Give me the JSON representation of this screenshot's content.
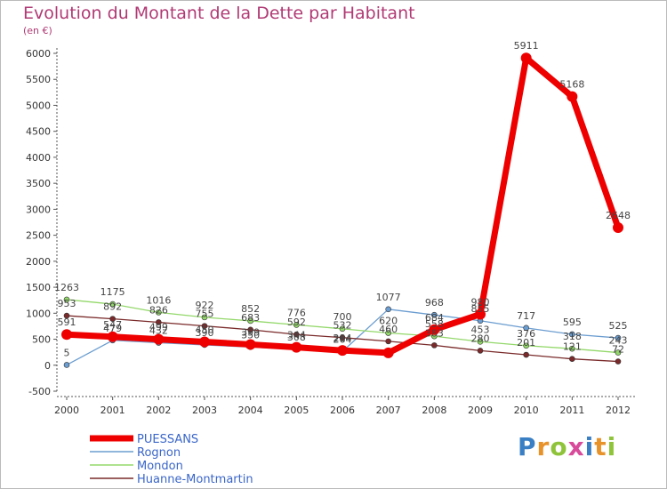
{
  "title": "Evolution du Montant de la Dette par Habitant",
  "subtitle": "(en €)",
  "logo": {
    "text": "Proxiti",
    "letters": [
      {
        "ch": "P",
        "color": "#3a7fc4"
      },
      {
        "ch": "r",
        "color": "#e8922a"
      },
      {
        "ch": "o",
        "color": "#8fc33a"
      },
      {
        "ch": "x",
        "color": "#d84a9a"
      },
      {
        "ch": "i",
        "color": "#3a7fc4"
      },
      {
        "ch": "t",
        "color": "#e8922a"
      },
      {
        "ch": "i",
        "color": "#8fc33a"
      }
    ]
  },
  "chart_data": {
    "type": "line",
    "title": "Evolution du Montant de la Dette par Habitant",
    "ylabel": "(en €)",
    "xlabel": "",
    "x": [
      2000,
      2001,
      2002,
      2003,
      2004,
      2005,
      2006,
      2007,
      2008,
      2009,
      2010,
      2011,
      2012
    ],
    "ylim": [
      -500,
      6000
    ],
    "yticks": [
      -500,
      0,
      500,
      1000,
      1500,
      2000,
      2500,
      3000,
      3500,
      4000,
      4500,
      5000,
      5500,
      6000
    ],
    "grid": false,
    "legend_position": "bottom-left",
    "series": [
      {
        "name": "PUESSANS",
        "color": "#ef0000",
        "values": [
          591,
          547,
          499,
          450,
          399,
          344,
          284,
          237,
          684,
          980,
          5911,
          5168,
          2648
        ],
        "labels": [
          "591",
          "547",
          "499",
          "450",
          "399",
          "344",
          "284",
          "",
          "684",
          "980",
          "5911",
          "5168",
          "2648"
        ]
      },
      {
        "name": "Rognon",
        "color": "#6b9dd0",
        "values": [
          5,
          479,
          432,
          390,
          350,
          308,
          264,
          1077,
          968,
          855,
          717,
          595,
          525
        ],
        "labels": [
          "5",
          "479",
          "432",
          "390",
          "350",
          "308",
          "264",
          "1077",
          "968",
          "855",
          "717",
          "595",
          "525"
        ]
      },
      {
        "name": "Mondon",
        "color": "#93d86a",
        "values": [
          1263,
          1175,
          1016,
          922,
          852,
          776,
          700,
          620,
          558,
          453,
          376,
          318,
          243
        ],
        "labels": [
          "1263",
          "1175",
          "1016",
          "922",
          "852",
          "776",
          "700",
          "620",
          "558",
          "453",
          "376",
          "318",
          "243"
        ]
      },
      {
        "name": "Huanne-Montmartin",
        "color": "#7a2a2a",
        "values": [
          953,
          892,
          826,
          755,
          683,
          592,
          532,
          460,
          383,
          280,
          201,
          121,
          72
        ],
        "labels": [
          "953",
          "892",
          "826",
          "755",
          "683",
          "592",
          "532",
          "460",
          "383",
          "280",
          "201",
          "121",
          "72"
        ]
      }
    ]
  }
}
